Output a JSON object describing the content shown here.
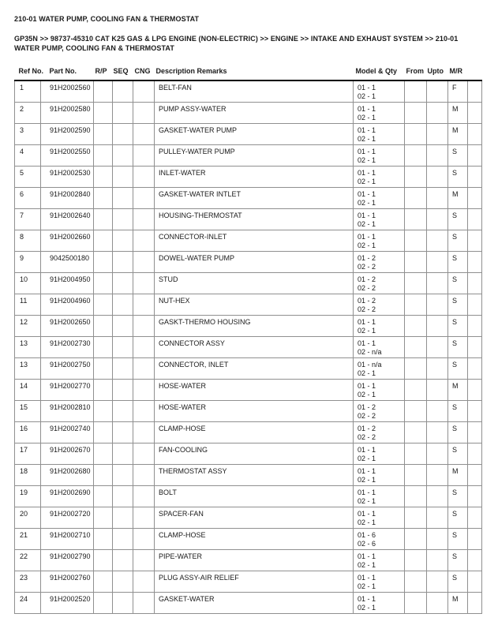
{
  "page": {
    "title": "210-01 WATER PUMP, COOLING FAN & THERMOSTAT",
    "breadcrumb_lines": [
      "GP35N >> 98737-45310 CAT K25 GAS & LPG ENGINE (NON-ELECTRIC) >> ENGINE >> INTAKE AND EXHAUST SYSTEM >> 210-01",
      "WATER PUMP, COOLING FAN & THERMOSTAT"
    ]
  },
  "table": {
    "headers": {
      "ref": "Ref No.",
      "part": "Part No.",
      "rp": "R/P",
      "seq": "SEQ",
      "cng": "CNG",
      "desc": "Description Remarks",
      "model": "Model & Qty",
      "from": "From",
      "upto": "Upto",
      "mr": "M/R"
    },
    "rows": [
      {
        "ref": "1",
        "part": "91H2002560",
        "desc": "BELT-FAN",
        "model_qty": [
          "01 - 1",
          "02 - 1"
        ],
        "mr": "F"
      },
      {
        "ref": "2",
        "part": "91H2002580",
        "desc": "PUMP ASSY-WATER",
        "model_qty": [
          "01 - 1",
          "02 - 1"
        ],
        "mr": "M"
      },
      {
        "ref": "3",
        "part": "91H2002590",
        "desc": "GASKET-WATER PUMP",
        "model_qty": [
          "01 - 1",
          "02 - 1"
        ],
        "mr": "M"
      },
      {
        "ref": "4",
        "part": "91H2002550",
        "desc": "PULLEY-WATER PUMP",
        "model_qty": [
          "01 - 1",
          "02 - 1"
        ],
        "mr": "S"
      },
      {
        "ref": "5",
        "part": "91H2002530",
        "desc": "INLET-WATER",
        "model_qty": [
          "01 - 1",
          "02 - 1"
        ],
        "mr": "S"
      },
      {
        "ref": "6",
        "part": "91H2002840",
        "desc": "GASKET-WATER INTLET",
        "model_qty": [
          "01 - 1",
          "02 - 1"
        ],
        "mr": "M"
      },
      {
        "ref": "7",
        "part": "91H2002640",
        "desc": "HOUSING-THERMOSTAT",
        "model_qty": [
          "01 - 1",
          "02 - 1"
        ],
        "mr": "S"
      },
      {
        "ref": "8",
        "part": "91H2002660",
        "desc": "CONNECTOR-INLET",
        "model_qty": [
          "01 - 1",
          "02 - 1"
        ],
        "mr": "S"
      },
      {
        "ref": "9",
        "part": "9042500180",
        "desc": "DOWEL-WATER PUMP",
        "model_qty": [
          "01 - 2",
          "02 - 2"
        ],
        "mr": "S"
      },
      {
        "ref": "10",
        "part": "91H2004950",
        "desc": "STUD",
        "model_qty": [
          "01 - 2",
          "02 - 2"
        ],
        "mr": "S"
      },
      {
        "ref": "11",
        "part": "91H2004960",
        "desc": "NUT-HEX",
        "model_qty": [
          "01 - 2",
          "02 - 2"
        ],
        "mr": "S"
      },
      {
        "ref": "12",
        "part": "91H2002650",
        "desc": "GASKT-THERMO HOUSING",
        "model_qty": [
          "01 - 1",
          "02 - 1"
        ],
        "mr": "S"
      },
      {
        "ref": "13",
        "part": "91H2002730",
        "desc": "CONNECTOR ASSY",
        "model_qty": [
          "01 - 1",
          "02 - n/a"
        ],
        "mr": "S"
      },
      {
        "ref": "13",
        "part": "91H2002750",
        "desc": "CONNECTOR, INLET",
        "model_qty": [
          "01 - n/a",
          "02 - 1"
        ],
        "mr": "S"
      },
      {
        "ref": "14",
        "part": "91H2002770",
        "desc": "HOSE-WATER",
        "model_qty": [
          "01 - 1",
          "02 - 1"
        ],
        "mr": "M"
      },
      {
        "ref": "15",
        "part": "91H2002810",
        "desc": "HOSE-WATER",
        "model_qty": [
          "01 - 2",
          "02 - 2"
        ],
        "mr": "S"
      },
      {
        "ref": "16",
        "part": "91H2002740",
        "desc": "CLAMP-HOSE",
        "model_qty": [
          "01 - 2",
          "02 - 2"
        ],
        "mr": "S"
      },
      {
        "ref": "17",
        "part": "91H2002670",
        "desc": "FAN-COOLING",
        "model_qty": [
          "01 - 1",
          "02 - 1"
        ],
        "mr": "S"
      },
      {
        "ref": "18",
        "part": "91H2002680",
        "desc": "THERMOSTAT ASSY",
        "model_qty": [
          "01 - 1",
          "02 - 1"
        ],
        "mr": "M"
      },
      {
        "ref": "19",
        "part": "91H2002690",
        "desc": "BOLT",
        "model_qty": [
          "01 - 1",
          "02 - 1"
        ],
        "mr": "S"
      },
      {
        "ref": "20",
        "part": "91H2002720",
        "desc": "SPACER-FAN",
        "model_qty": [
          "01 - 1",
          "02 - 1"
        ],
        "mr": "S"
      },
      {
        "ref": "21",
        "part": "91H2002710",
        "desc": "CLAMP-HOSE",
        "model_qty": [
          "01 - 6",
          "02 - 6"
        ],
        "mr": "S"
      },
      {
        "ref": "22",
        "part": "91H2002790",
        "desc": "PIPE-WATER",
        "model_qty": [
          "01 - 1",
          "02 - 1"
        ],
        "mr": "S"
      },
      {
        "ref": "23",
        "part": "91H2002760",
        "desc": "PLUG ASSY-AIR RELIEF",
        "model_qty": [
          "01 - 1",
          "02 - 1"
        ],
        "mr": "S"
      },
      {
        "ref": "24",
        "part": "91H2002520",
        "desc": "GASKET-WATER",
        "model_qty": [
          "01 - 1",
          "02 - 1"
        ],
        "mr": "M"
      }
    ]
  },
  "colors": {
    "text": "#1a1a1a",
    "grid_line": "#909090",
    "header_rule": "#000000",
    "page_bg": "#ffffff"
  }
}
